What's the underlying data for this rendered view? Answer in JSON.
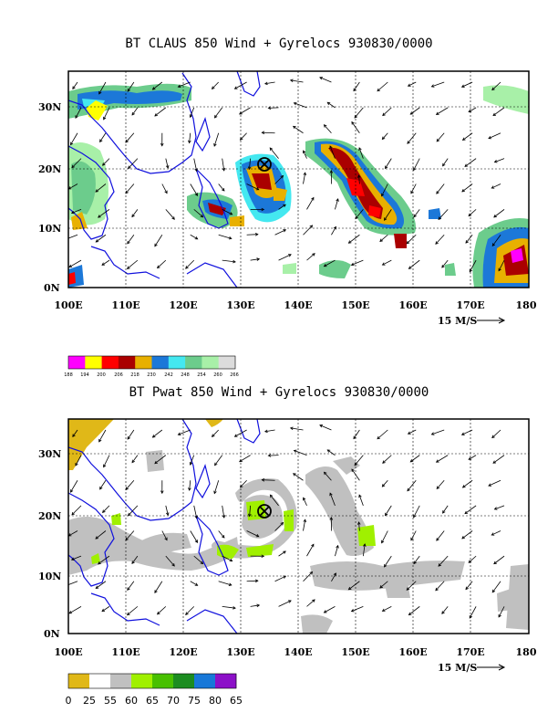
{
  "panel1": {
    "title": "BT CLAUS 850 Wind + Gyrelocs 930830/0000",
    "y_ticks": [
      "30N",
      "20N",
      "10N",
      "0N"
    ],
    "x_ticks": [
      "100E",
      "110E",
      "120E",
      "130E",
      "140E",
      "150E",
      "160E",
      "170E",
      "180"
    ],
    "vector_ref": "15 M/S",
    "colorbar_labels": [
      "188",
      "194",
      "200",
      "206",
      "218",
      "230",
      "242",
      "248",
      "254",
      "260",
      "266"
    ],
    "colorbar_colors": [
      "#ff00ff",
      "#ffff00",
      "#ff0000",
      "#aa0000",
      "#e8b000",
      "#1c78d8",
      "#44e8f0",
      "#6ccc8c",
      "#a8f0a8",
      "#dcdcdc"
    ]
  },
  "panel2": {
    "title": "BT Pwat 850 Wind + Gyrelocs 930830/0000",
    "y_ticks": [
      "30N",
      "20N",
      "10N",
      "0N"
    ],
    "x_ticks": [
      "100E",
      "110E",
      "120E",
      "130E",
      "140E",
      "150E",
      "160E",
      "170E",
      "180"
    ],
    "vector_ref": "15 M/S",
    "colorbar_labels": [
      "0",
      "25",
      "55",
      "60",
      "65",
      "70",
      "75",
      "80",
      "65"
    ],
    "colorbar_colors": [
      "#e0b818",
      "#ffffff",
      "#c0c0c0",
      "#a0f000",
      "#48c000",
      "#1c8c20",
      "#1878d8",
      "#8c10c8"
    ]
  },
  "map": {
    "lon_range": [
      100,
      180
    ],
    "lat_range": [
      0,
      36
    ],
    "gyre_center": {
      "lon": 134,
      "lat": 20.5
    }
  }
}
